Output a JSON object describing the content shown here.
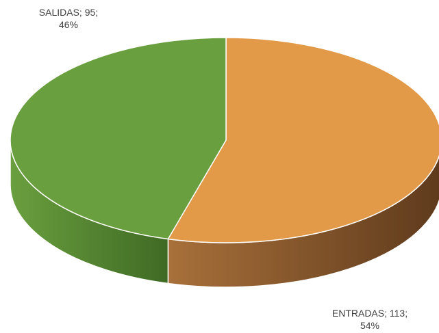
{
  "chart_data": {
    "type": "pie",
    "style": "3d",
    "title": "",
    "categories": [
      "ENTRADAS",
      "SALIDAS"
    ],
    "values": [
      113,
      95
    ],
    "percentages": [
      "54%",
      "46%"
    ],
    "colors": [
      "#E39A48",
      "#6A9F3F"
    ],
    "side_colors": [
      "#8B5A2E",
      "#4D7A2E"
    ],
    "labels": [
      {
        "line1": "ENTRADAS; 113;",
        "line2": "54%"
      },
      {
        "line1": "SALIDAS; 95;",
        "line2": "46%"
      }
    ],
    "legend": "none",
    "start_angle_deg": 0,
    "direction": "clockwise"
  }
}
